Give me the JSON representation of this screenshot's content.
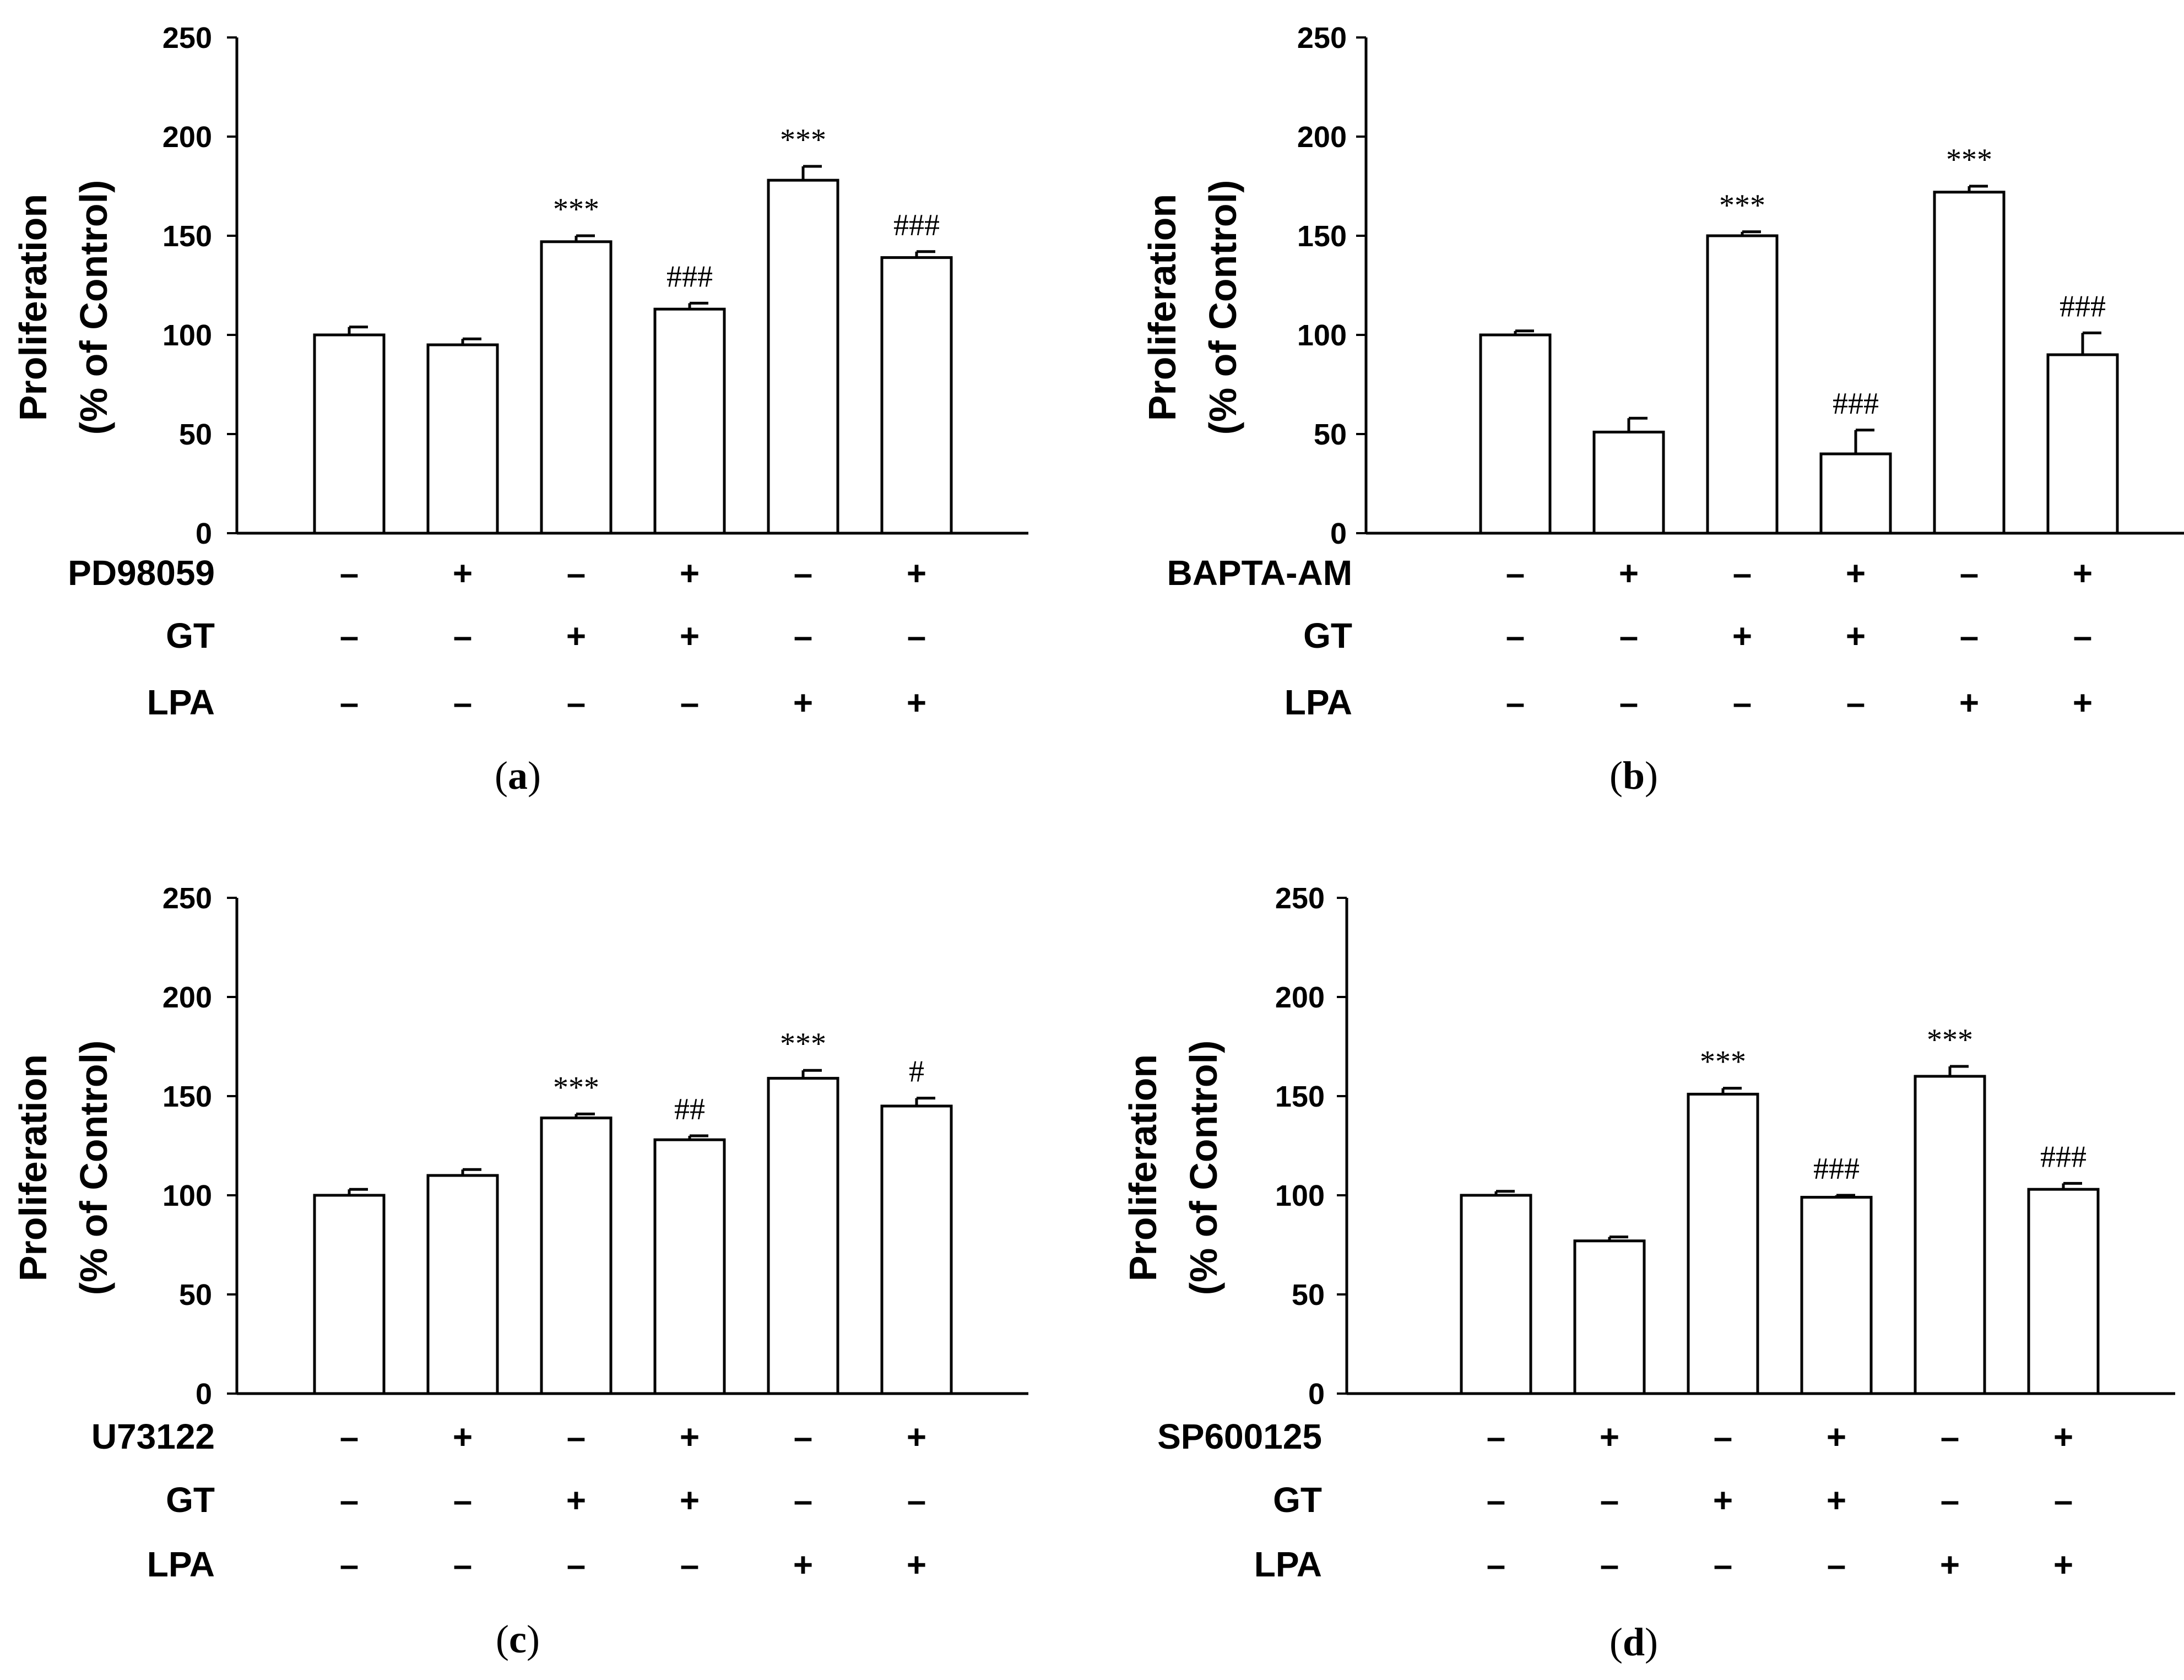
{
  "chart_data": [
    {
      "panel": "a",
      "type": "bar",
      "ylabel_line1": "Proliferation",
      "ylabel_line2": "(% of Control)",
      "ylim": [
        0,
        250
      ],
      "yticks": [
        "0",
        "50",
        "100",
        "150",
        "200",
        "250"
      ],
      "values": [
        100,
        95,
        147,
        113,
        178,
        139
      ],
      "errors": [
        4,
        3,
        3,
        3,
        7,
        3
      ],
      "annotations": [
        "",
        "",
        "***",
        "###",
        "***",
        "###"
      ],
      "conditions": [
        {
          "label": "PD98059",
          "values": [
            "–",
            "+",
            "–",
            "+",
            "–",
            "+"
          ]
        },
        {
          "label": "GT",
          "values": [
            "–",
            "–",
            "+",
            "+",
            "–",
            "–"
          ]
        },
        {
          "label": "LPA",
          "values": [
            "–",
            "–",
            "–",
            "–",
            "+",
            "+"
          ]
        }
      ]
    },
    {
      "panel": "b",
      "type": "bar",
      "ylabel_line1": "Proliferation",
      "ylabel_line2": "(% of Control)",
      "ylim": [
        0,
        250
      ],
      "yticks": [
        "0",
        "50",
        "100",
        "150",
        "200",
        "250"
      ],
      "values": [
        100,
        51,
        150,
        40,
        172,
        90
      ],
      "errors": [
        2,
        7,
        2,
        12,
        3,
        11
      ],
      "annotations": [
        "",
        "",
        "***",
        "###",
        "***",
        "###"
      ],
      "conditions": [
        {
          "label": "BAPTA-AM",
          "values": [
            "–",
            "+",
            "–",
            "+",
            "–",
            "+"
          ]
        },
        {
          "label": "GT",
          "values": [
            "–",
            "–",
            "+",
            "+",
            "–",
            "–"
          ]
        },
        {
          "label": "LPA",
          "values": [
            "–",
            "–",
            "–",
            "–",
            "+",
            "+"
          ]
        }
      ]
    },
    {
      "panel": "c",
      "type": "bar",
      "ylabel_line1": "Proliferation",
      "ylabel_line2": "(% of Control)",
      "ylim": [
        0,
        250
      ],
      "yticks": [
        "0",
        "50",
        "100",
        "150",
        "200",
        "250"
      ],
      "values": [
        100,
        110,
        139,
        128,
        159,
        145
      ],
      "errors": [
        3,
        3,
        2,
        2,
        4,
        4
      ],
      "annotations": [
        "",
        "",
        "***",
        "##",
        "***",
        "#"
      ],
      "conditions": [
        {
          "label": "U73122",
          "values": [
            "–",
            "+",
            "–",
            "+",
            "–",
            "+"
          ]
        },
        {
          "label": "GT",
          "values": [
            "–",
            "–",
            "+",
            "+",
            "–",
            "–"
          ]
        },
        {
          "label": "LPA",
          "values": [
            "–",
            "–",
            "–",
            "–",
            "+",
            "+"
          ]
        }
      ]
    },
    {
      "panel": "d",
      "type": "bar",
      "ylabel_line1": "Proliferation",
      "ylabel_line2": "(% of Control)",
      "ylim": [
        0,
        250
      ],
      "yticks": [
        "0",
        "50",
        "100",
        "150",
        "200",
        "250"
      ],
      "values": [
        100,
        77,
        151,
        99,
        160,
        103
      ],
      "errors": [
        2,
        2,
        3,
        1,
        5,
        3
      ],
      "annotations": [
        "",
        "",
        "***",
        "###",
        "***",
        "###"
      ],
      "conditions": [
        {
          "label": "SP600125",
          "values": [
            "–",
            "+",
            "–",
            "+",
            "–",
            "+"
          ]
        },
        {
          "label": "GT",
          "values": [
            "–",
            "–",
            "+",
            "+",
            "–",
            "–"
          ]
        },
        {
          "label": "LPA",
          "values": [
            "–",
            "–",
            "–",
            "–",
            "+",
            "+"
          ]
        }
      ]
    }
  ]
}
